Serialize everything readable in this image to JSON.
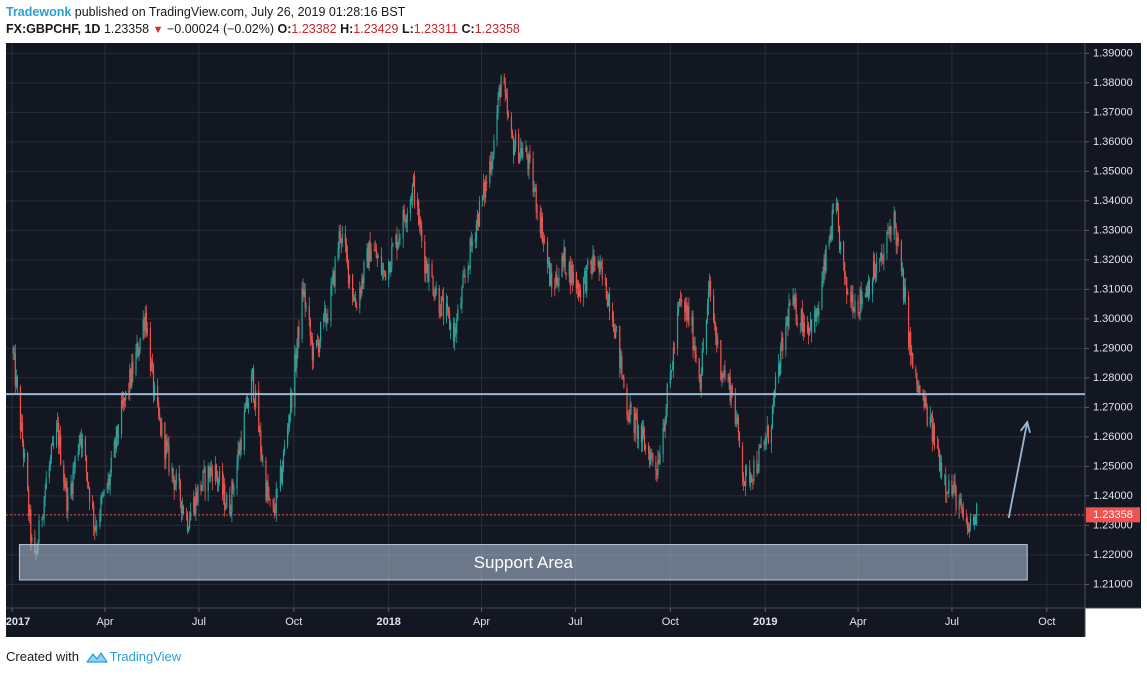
{
  "header": {
    "author": "Tradewonk",
    "published_text": " published on TradingView.com, July 26, 2019 01:28:16 BST",
    "symbol": "FX:GBPCHF, 1D",
    "last_price": "1.23358",
    "change": "−0.00024 (−0.02%)",
    "open_label": "O:",
    "open": "1.23382",
    "high_label": "H:",
    "high": "1.23429",
    "low_label": "L:",
    "low": "1.23311",
    "close_label": "C:",
    "close": "1.23358"
  },
  "footer": {
    "created_with": "Created with",
    "brand": "TradingView"
  },
  "colors": {
    "background": "#131722",
    "up": "#26a69a",
    "down": "#ef5350",
    "grid": "#2a2e39",
    "resistance_line": "#9bb7d4",
    "support_box": "#b7c9de",
    "price_tag": "#ef5350",
    "arrow": "#9bb7d4"
  },
  "chart_data": {
    "type": "candlestick",
    "symbol": "FX:GBPCHF",
    "interval": "1D",
    "x_tick_labels": [
      "2017",
      "Apr",
      "Jul",
      "Oct",
      "2018",
      "Apr",
      "Jul",
      "Oct",
      "2019",
      "Apr",
      "Jul",
      "Oct"
    ],
    "x_tick_dates": [
      "2017-01-01",
      "2017-04-01",
      "2017-07-01",
      "2017-10-01",
      "2018-01-01",
      "2018-04-01",
      "2018-07-01",
      "2018-10-01",
      "2019-01-01",
      "2019-04-01",
      "2019-07-01",
      "2019-10-01"
    ],
    "x_range": [
      "2016-12-26",
      "2019-11-07"
    ],
    "y_range": [
      1.202,
      1.3935
    ],
    "y_ticks": [
      "1.21000",
      "1.22000",
      "1.23000",
      "1.24000",
      "1.25000",
      "1.26000",
      "1.27000",
      "1.28000",
      "1.29000",
      "1.30000",
      "1.31000",
      "1.32000",
      "1.33000",
      "1.34000",
      "1.35000",
      "1.36000",
      "1.37000",
      "1.38000",
      "1.39000"
    ],
    "grid": true,
    "price_path": [
      {
        "date": "2017-01-01",
        "price": 1.29
      },
      {
        "date": "2017-01-12",
        "price": 1.255
      },
      {
        "date": "2017-01-22",
        "price": 1.215
      },
      {
        "date": "2017-02-03",
        "price": 1.245
      },
      {
        "date": "2017-02-14",
        "price": 1.262
      },
      {
        "date": "2017-02-24",
        "price": 1.237
      },
      {
        "date": "2017-03-08",
        "price": 1.262
      },
      {
        "date": "2017-03-22",
        "price": 1.23
      },
      {
        "date": "2017-04-05",
        "price": 1.245
      },
      {
        "date": "2017-04-15",
        "price": 1.265
      },
      {
        "date": "2017-04-26",
        "price": 1.28
      },
      {
        "date": "2017-05-03",
        "price": 1.29
      },
      {
        "date": "2017-05-10",
        "price": 1.302
      },
      {
        "date": "2017-05-20",
        "price": 1.27
      },
      {
        "date": "2017-06-03",
        "price": 1.25
      },
      {
        "date": "2017-06-20",
        "price": 1.232
      },
      {
        "date": "2017-07-02",
        "price": 1.243
      },
      {
        "date": "2017-07-15",
        "price": 1.25
      },
      {
        "date": "2017-07-30",
        "price": 1.235
      },
      {
        "date": "2017-08-12",
        "price": 1.262
      },
      {
        "date": "2017-08-22",
        "price": 1.28
      },
      {
        "date": "2017-09-03",
        "price": 1.245
      },
      {
        "date": "2017-09-10",
        "price": 1.232
      },
      {
        "date": "2017-09-18",
        "price": 1.245
      },
      {
        "date": "2017-10-01",
        "price": 1.28
      },
      {
        "date": "2017-10-10",
        "price": 1.31
      },
      {
        "date": "2017-10-20",
        "price": 1.287
      },
      {
        "date": "2017-11-05",
        "price": 1.305
      },
      {
        "date": "2017-11-15",
        "price": 1.33
      },
      {
        "date": "2017-11-30",
        "price": 1.305
      },
      {
        "date": "2017-12-15",
        "price": 1.325
      },
      {
        "date": "2017-12-27",
        "price": 1.315
      },
      {
        "date": "2018-01-10",
        "price": 1.328
      },
      {
        "date": "2018-01-25",
        "price": 1.345
      },
      {
        "date": "2018-02-05",
        "price": 1.32
      },
      {
        "date": "2018-02-20",
        "price": 1.305
      },
      {
        "date": "2018-03-06",
        "price": 1.295
      },
      {
        "date": "2018-03-14",
        "price": 1.31
      },
      {
        "date": "2018-03-25",
        "price": 1.33
      },
      {
        "date": "2018-04-05",
        "price": 1.345
      },
      {
        "date": "2018-04-13",
        "price": 1.36
      },
      {
        "date": "2018-04-20",
        "price": 1.382
      },
      {
        "date": "2018-04-30",
        "price": 1.36
      },
      {
        "date": "2018-05-15",
        "price": 1.355
      },
      {
        "date": "2018-05-30",
        "price": 1.33
      },
      {
        "date": "2018-06-08",
        "price": 1.31
      },
      {
        "date": "2018-06-20",
        "price": 1.32
      },
      {
        "date": "2018-07-05",
        "price": 1.31
      },
      {
        "date": "2018-07-20",
        "price": 1.32
      },
      {
        "date": "2018-08-05",
        "price": 1.305
      },
      {
        "date": "2018-08-20",
        "price": 1.27
      },
      {
        "date": "2018-09-05",
        "price": 1.258
      },
      {
        "date": "2018-09-18",
        "price": 1.25
      },
      {
        "date": "2018-10-01",
        "price": 1.28
      },
      {
        "date": "2018-10-10",
        "price": 1.305
      },
      {
        "date": "2018-10-20",
        "price": 1.3
      },
      {
        "date": "2018-10-30",
        "price": 1.28
      },
      {
        "date": "2018-11-08",
        "price": 1.31
      },
      {
        "date": "2018-11-18",
        "price": 1.285
      },
      {
        "date": "2018-11-30",
        "price": 1.275
      },
      {
        "date": "2018-12-12",
        "price": 1.245
      },
      {
        "date": "2018-12-25",
        "price": 1.252
      },
      {
        "date": "2019-01-05",
        "price": 1.262
      },
      {
        "date": "2019-01-15",
        "price": 1.285
      },
      {
        "date": "2019-01-25",
        "price": 1.305
      },
      {
        "date": "2019-02-10",
        "price": 1.298
      },
      {
        "date": "2019-02-20",
        "price": 1.3
      },
      {
        "date": "2019-03-03",
        "price": 1.325
      },
      {
        "date": "2019-03-10",
        "price": 1.338
      },
      {
        "date": "2019-03-20",
        "price": 1.31
      },
      {
        "date": "2019-04-01",
        "price": 1.305
      },
      {
        "date": "2019-04-15",
        "price": 1.315
      },
      {
        "date": "2019-04-25",
        "price": 1.32
      },
      {
        "date": "2019-05-05",
        "price": 1.336
      },
      {
        "date": "2019-05-15",
        "price": 1.31
      },
      {
        "date": "2019-05-25",
        "price": 1.28
      },
      {
        "date": "2019-06-05",
        "price": 1.27
      },
      {
        "date": "2019-06-15",
        "price": 1.258
      },
      {
        "date": "2019-06-25",
        "price": 1.245
      },
      {
        "date": "2019-07-05",
        "price": 1.24
      },
      {
        "date": "2019-07-15",
        "price": 1.228
      },
      {
        "date": "2019-07-25",
        "price": 1.23358
      }
    ],
    "annotations": {
      "resistance_line": {
        "price": 1.2745
      },
      "support_area": {
        "label": "Support Area",
        "price_top": 1.2235,
        "price_bottom": 1.2115,
        "date_start": "2017-01-08",
        "date_end": "2019-09-12"
      },
      "current_price_line": {
        "price": 1.23358,
        "label": "1.23358"
      },
      "arrow": {
        "from_date": "2019-08-25",
        "from_price": 1.2325,
        "to_date": "2019-09-12",
        "to_price": 1.265
      }
    }
  }
}
